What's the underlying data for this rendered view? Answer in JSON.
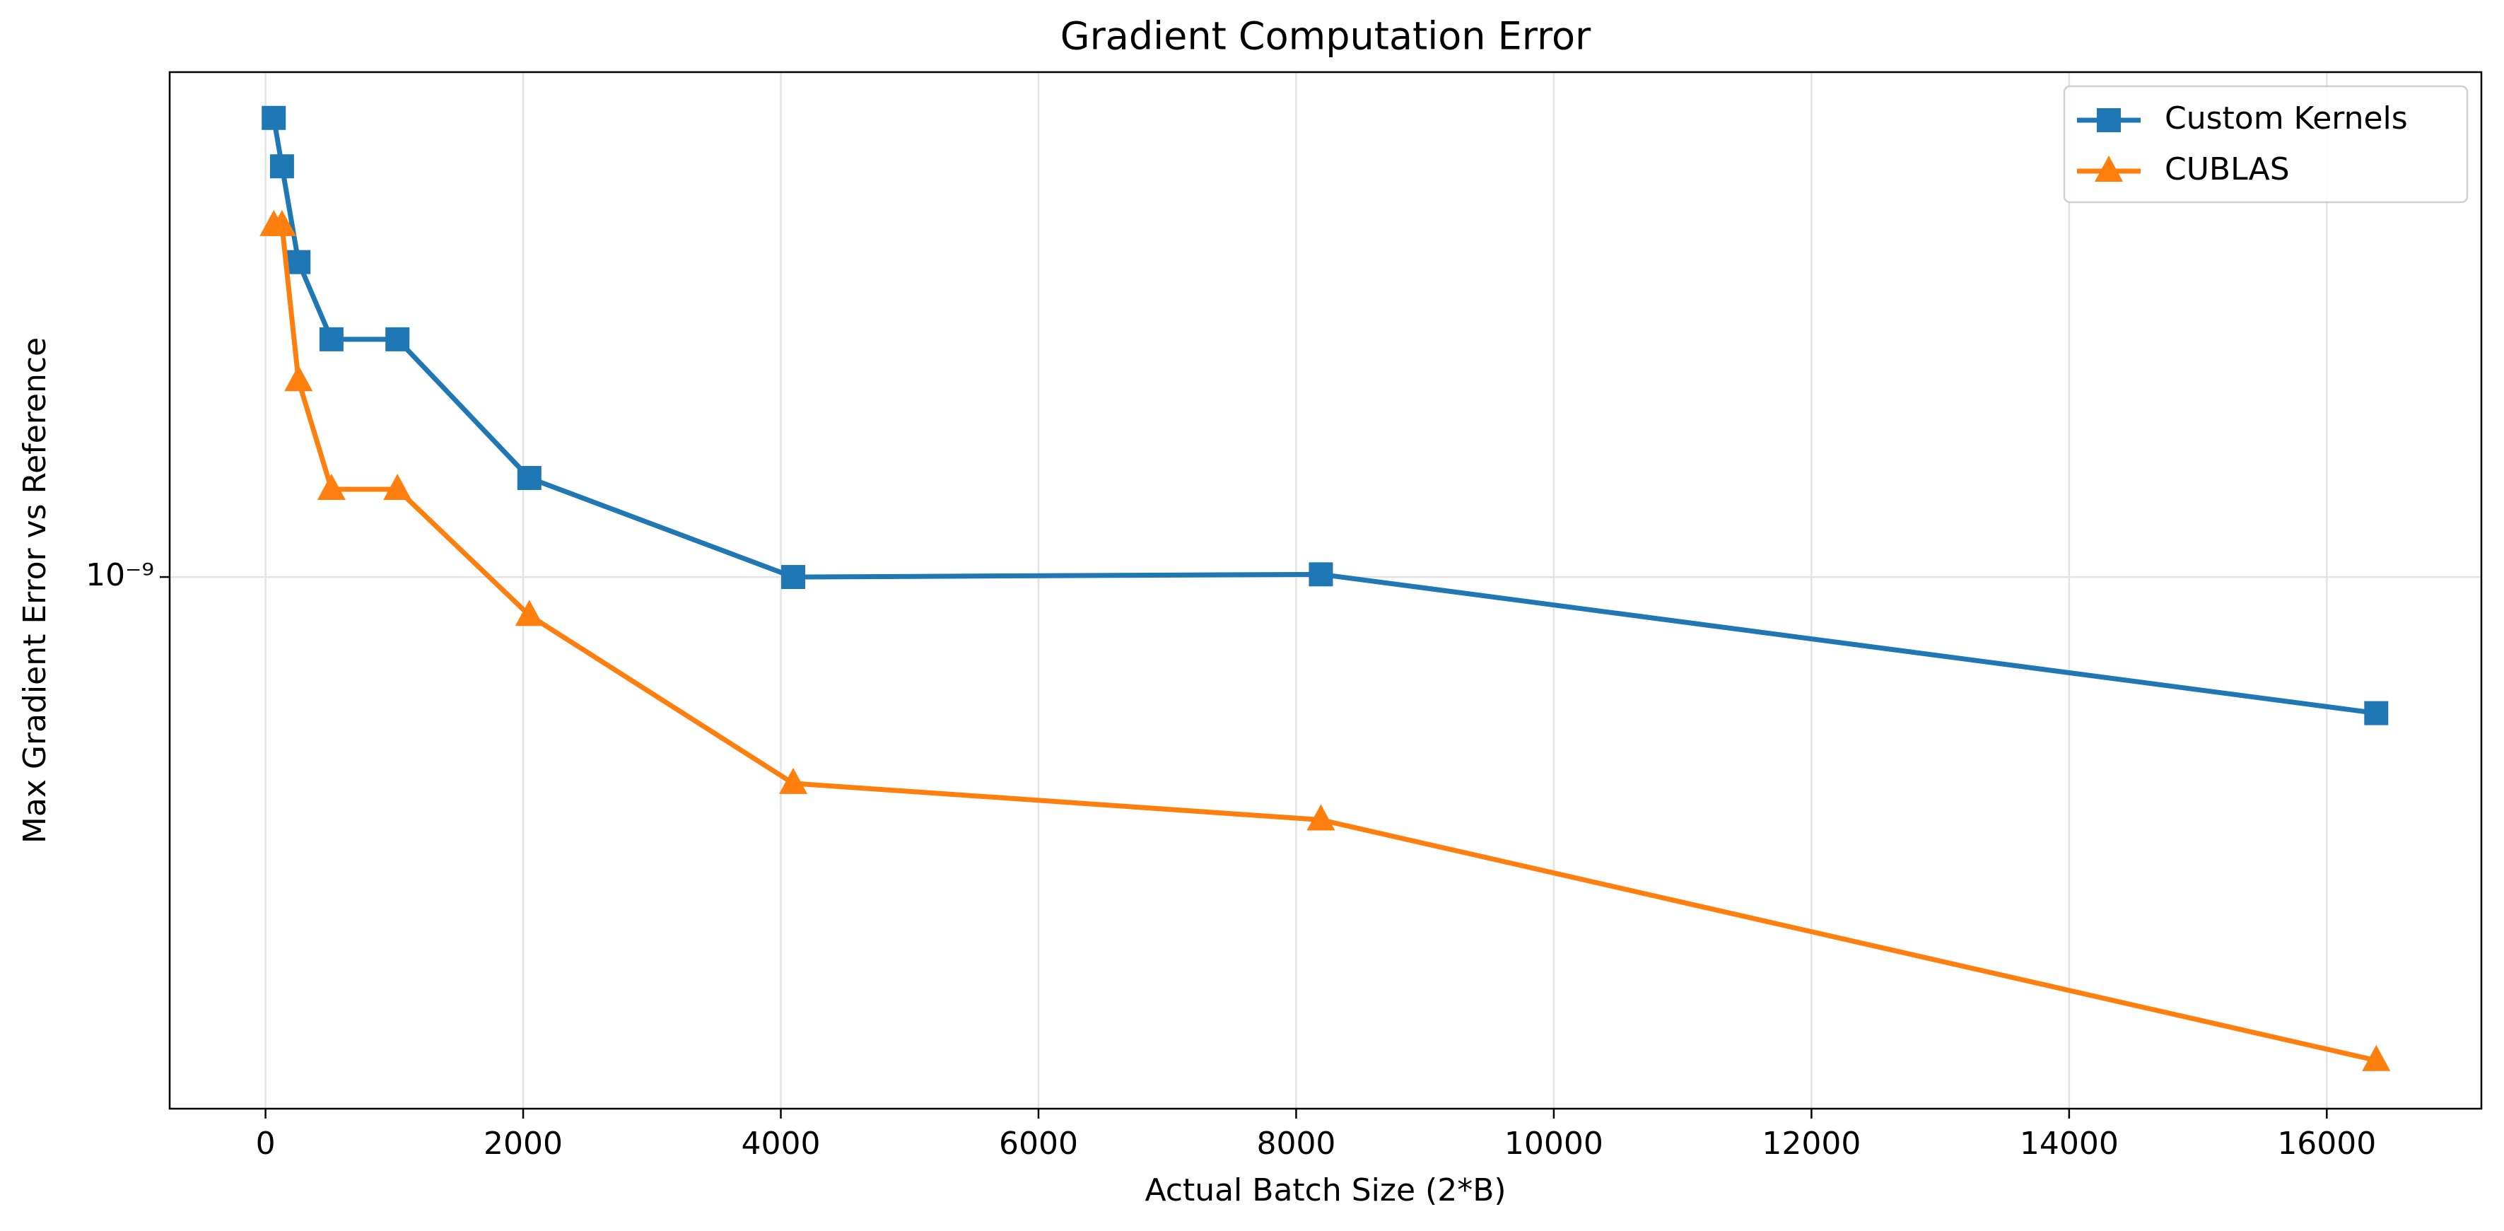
{
  "chart_data": {
    "type": "line",
    "title": "Gradient Computation Error",
    "x_label": "Actual Batch Size (2*B)",
    "y_label": "Max Gradient Error vs Reference",
    "x": [
      64,
      128,
      256,
      512,
      1024,
      2048,
      4096,
      8192,
      16384
    ],
    "series": [
      {
        "name": "Custom Kernels",
        "color": "#1f77b4",
        "marker": "square",
        "values": [
          5.6e-09,
          4.67e-09,
          3.26e-09,
          2.44e-09,
          2.44e-09,
          1.45e-09,
          1e-09,
          1.01e-09,
          6e-10
        ]
      },
      {
        "name": "CUBLAS",
        "color": "#ff7f0e",
        "marker": "triangle",
        "values": [
          3.74e-09,
          3.74e-09,
          2.09e-09,
          1.39e-09,
          1.39e-09,
          8.66e-10,
          4.61e-10,
          4.02e-10,
          1.63e-10
        ]
      }
    ],
    "xlim": [
      -744,
      17200
    ],
    "xticks": [
      0,
      2000,
      4000,
      6000,
      8000,
      10000,
      12000,
      14000,
      16000
    ],
    "ylim": [
      1.36e-10,
      6.65e-09
    ],
    "y_scale": "log",
    "yticks": [
      {
        "value": 1e-09,
        "label": "10⁻⁹"
      }
    ],
    "grid": true,
    "legend_position": "upper right"
  }
}
